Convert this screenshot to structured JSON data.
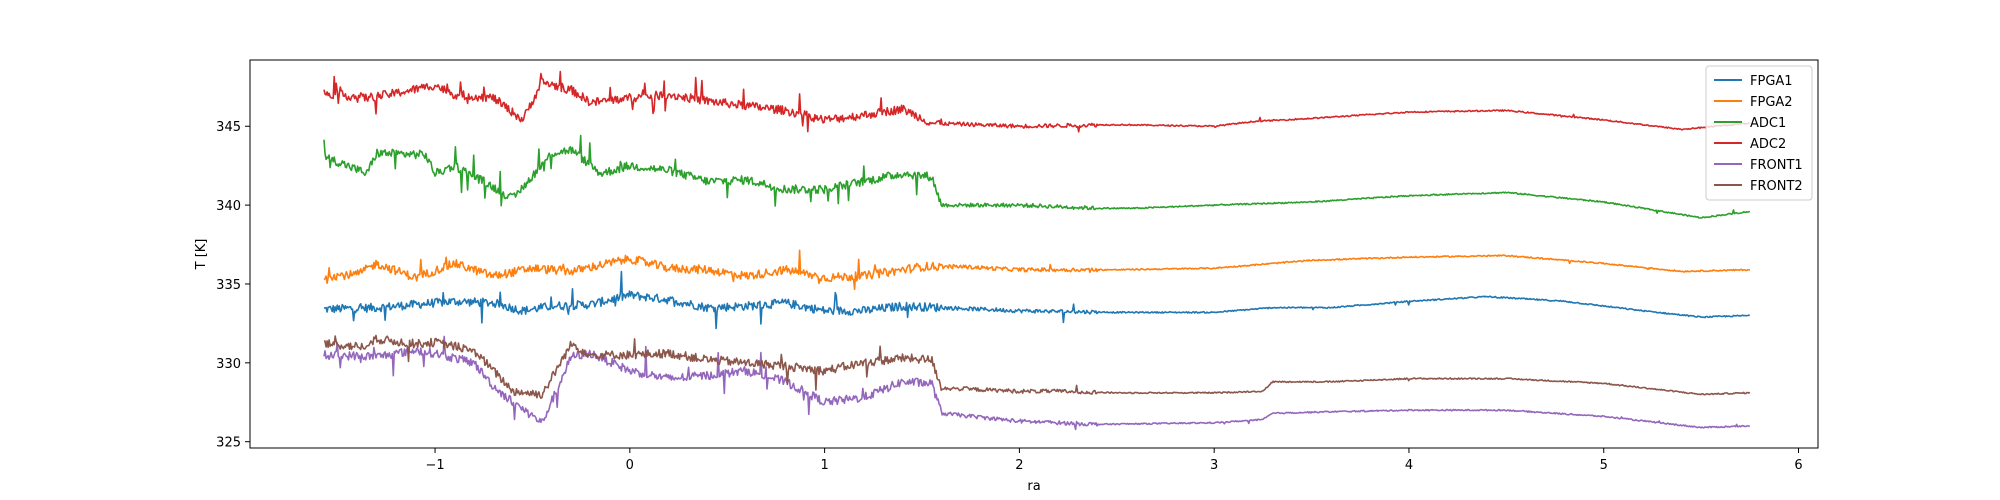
{
  "chart_data": {
    "type": "line",
    "xlabel": "ra",
    "ylabel": "T [K]",
    "xlim": [
      -1.95,
      6.1
    ],
    "ylim": [
      324.6,
      349.2
    ],
    "xticks": [
      -1,
      0,
      1,
      2,
      3,
      4,
      5,
      6
    ],
    "xtick_labels": [
      "−1",
      "0",
      "1",
      "2",
      "3",
      "4",
      "5",
      "6"
    ],
    "yticks": [
      325,
      330,
      335,
      340,
      345
    ],
    "ytick_labels": [
      "325",
      "330",
      "335",
      "340",
      "345"
    ],
    "grid": false,
    "legend_position": "top-right",
    "series": [
      {
        "name": "FPGA1",
        "color": "#1f77b4",
        "x": [
          -1.57,
          -1.3,
          -1.1,
          -0.9,
          -0.7,
          -0.55,
          -0.4,
          -0.2,
          0.0,
          0.2,
          0.4,
          0.6,
          0.8,
          1.0,
          1.2,
          1.4,
          1.6,
          2.0,
          2.5,
          3.0,
          3.3,
          3.6,
          4.0,
          4.4,
          4.8,
          5.2,
          5.5,
          5.75
        ],
        "y": [
          333.4,
          333.5,
          333.7,
          333.9,
          333.8,
          333.3,
          333.6,
          333.7,
          334.3,
          334.0,
          333.5,
          333.6,
          333.8,
          333.3,
          333.3,
          333.6,
          333.5,
          333.3,
          333.2,
          333.2,
          333.5,
          333.5,
          333.9,
          334.2,
          333.9,
          333.3,
          332.9,
          333.0
        ]
      },
      {
        "name": "FPGA2",
        "color": "#ff7f0e",
        "x": [
          -1.57,
          -1.4,
          -1.3,
          -1.1,
          -0.9,
          -0.7,
          -0.5,
          -0.3,
          0.0,
          0.2,
          0.4,
          0.6,
          0.8,
          1.0,
          1.2,
          1.5,
          1.7,
          2.0,
          2.5,
          3.0,
          3.5,
          4.0,
          4.5,
          5.0,
          5.4,
          5.75
        ],
        "y": [
          335.5,
          335.6,
          336.3,
          335.4,
          336.3,
          335.5,
          336.0,
          335.8,
          336.6,
          336.0,
          335.9,
          335.5,
          335.9,
          335.4,
          335.5,
          336.1,
          336.1,
          335.9,
          335.9,
          336.0,
          336.5,
          336.7,
          336.8,
          336.3,
          335.8,
          335.9
        ]
      },
      {
        "name": "ADC1",
        "color": "#2ca02c",
        "x": [
          -1.57,
          -1.35,
          -1.3,
          -1.05,
          -1.0,
          -0.9,
          -0.75,
          -0.6,
          -0.4,
          -0.3,
          -0.15,
          0.0,
          0.2,
          0.4,
          0.6,
          0.8,
          1.0,
          1.2,
          1.4,
          1.55,
          1.6,
          2.0,
          2.4,
          2.6,
          3.0,
          3.5,
          4.0,
          4.5,
          5.0,
          5.5,
          5.75
        ],
        "y": [
          343.1,
          342.0,
          343.3,
          343.2,
          342.0,
          342.5,
          341.5,
          340.4,
          343.3,
          343.5,
          342.0,
          342.5,
          342.2,
          341.5,
          341.6,
          341.0,
          341.0,
          341.5,
          342.0,
          341.8,
          340.0,
          340.0,
          339.8,
          339.8,
          340.0,
          340.2,
          340.6,
          340.8,
          340.2,
          339.2,
          339.6
        ]
      },
      {
        "name": "ADC2",
        "color": "#d62728",
        "x": [
          -1.57,
          -1.35,
          -1.2,
          -1.0,
          -0.9,
          -0.7,
          -0.55,
          -0.45,
          -0.3,
          -0.2,
          0.0,
          0.2,
          0.4,
          0.6,
          0.8,
          1.0,
          1.2,
          1.4,
          1.55,
          2.0,
          2.5,
          3.0,
          3.2,
          3.5,
          4.0,
          4.5,
          5.0,
          5.4,
          5.75
        ],
        "y": [
          347.1,
          346.8,
          347.1,
          347.6,
          347.0,
          346.8,
          345.4,
          347.8,
          347.3,
          346.5,
          346.8,
          347.0,
          346.6,
          346.3,
          346.0,
          345.4,
          345.7,
          346.1,
          345.2,
          345.0,
          345.1,
          345.0,
          345.3,
          345.5,
          345.9,
          346.0,
          345.4,
          344.8,
          345.2
        ]
      },
      {
        "name": "FRONT1",
        "color": "#9467bd",
        "x": [
          -1.57,
          -1.3,
          -1.1,
          -1.0,
          -0.8,
          -0.7,
          -0.6,
          -0.45,
          -0.3,
          -0.2,
          0.0,
          0.2,
          0.4,
          0.6,
          0.8,
          1.0,
          1.2,
          1.4,
          1.55,
          1.6,
          2.0,
          2.2,
          2.4,
          3.0,
          3.25,
          3.3,
          3.6,
          4.0,
          4.5,
          5.0,
          5.5,
          5.75
        ],
        "y": [
          330.5,
          330.4,
          330.8,
          330.6,
          330.0,
          328.5,
          327.5,
          326.2,
          330.4,
          330.6,
          329.5,
          329.0,
          329.2,
          329.5,
          328.8,
          327.5,
          327.8,
          328.8,
          328.7,
          326.8,
          326.3,
          326.2,
          326.1,
          326.2,
          326.4,
          326.8,
          326.9,
          327.0,
          327.0,
          326.6,
          325.9,
          326.0
        ]
      },
      {
        "name": "FRONT2",
        "color": "#8c564b",
        "x": [
          -1.57,
          -1.35,
          -1.3,
          -1.1,
          -1.0,
          -0.8,
          -0.7,
          -0.6,
          -0.45,
          -0.3,
          -0.2,
          0.0,
          0.2,
          0.4,
          0.6,
          0.8,
          1.0,
          1.2,
          1.4,
          1.55,
          1.6,
          2.0,
          2.2,
          2.5,
          3.0,
          3.25,
          3.3,
          3.6,
          4.0,
          4.5,
          5.0,
          5.5,
          5.75
        ],
        "y": [
          331.2,
          331.0,
          331.5,
          331.2,
          331.3,
          330.8,
          329.5,
          328.2,
          328.0,
          331.2,
          330.5,
          330.5,
          330.6,
          330.2,
          330.0,
          329.8,
          329.5,
          330.0,
          330.3,
          330.2,
          328.4,
          328.2,
          328.2,
          328.1,
          328.1,
          328.2,
          328.8,
          328.8,
          329.0,
          329.0,
          328.7,
          328.0,
          328.1
        ]
      }
    ]
  }
}
